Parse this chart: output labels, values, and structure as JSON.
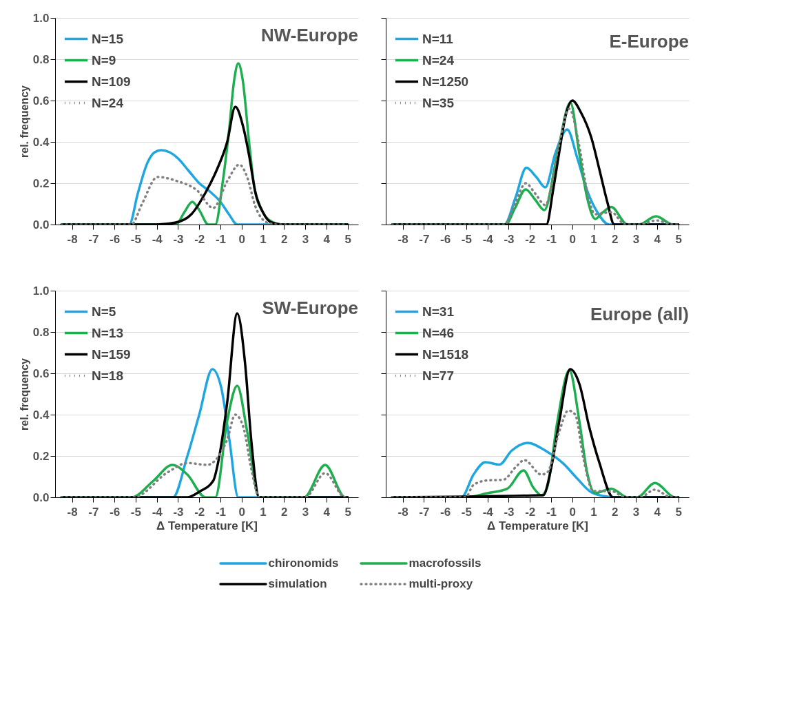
{
  "chart_data": [
    {
      "type": "line",
      "title": "NW-Europe",
      "ylabel": "rel. frequency",
      "xlim": [
        -8.8,
        5.5
      ],
      "ylim": [
        0,
        1
      ],
      "xticks": [
        -8,
        -7,
        -6,
        -5,
        -4,
        -3,
        -2,
        -1,
        0,
        1,
        2,
        3,
        4,
        5
      ],
      "yticks": [
        {
          "value": 0,
          "label": "0.0"
        },
        {
          "value": 0.2,
          "label": "0.2"
        },
        {
          "value": 0.4,
          "label": "0.4"
        },
        {
          "value": 0.6,
          "label": "0.6"
        },
        {
          "value": 0.8,
          "label": "0.8"
        },
        {
          "value": 1,
          "label": "1.0"
        }
      ],
      "grid": "y",
      "legend": "top left",
      "series": [
        {
          "name": "N=15",
          "color": "#1fa6e0",
          "line_style": "solid",
          "x": [
            -8.5,
            -5.3,
            -4.9,
            -4.44,
            -4.1,
            -3.8,
            -3.4,
            -3.0,
            -2.5,
            -2.0,
            -1.5,
            -1.0,
            -0.6,
            -0.2,
            5
          ],
          "values": [
            0,
            0,
            0.15,
            0.3,
            0.35,
            0.36,
            0.35,
            0.32,
            0.26,
            0.2,
            0.16,
            0.11,
            0.05,
            0,
            0
          ]
        },
        {
          "name": "N=9",
          "color": "#1fae4f",
          "line_style": "solid",
          "x": [
            -8.5,
            -3.1,
            -2.7,
            -2.33,
            -2.0,
            -1.57,
            -1.24,
            -0.9,
            -0.6,
            -0.35,
            -0.16,
            0.05,
            0.35,
            0.6,
            1.0,
            1.5,
            1.9,
            5
          ],
          "values": [
            0,
            0,
            0.06,
            0.11,
            0.07,
            0,
            0,
            0.2,
            0.45,
            0.7,
            0.78,
            0.7,
            0.4,
            0.18,
            0.06,
            0.01,
            0,
            0
          ]
        },
        {
          "name": "N=109",
          "color": "#000000",
          "line_style": "solid",
          "x": [
            -8.5,
            -4.0,
            -3.1,
            -2.37,
            -1.7,
            -1.15,
            -0.68,
            -0.3,
            0.08,
            0.36,
            0.64,
            1.0,
            1.4,
            1.9,
            5
          ],
          "values": [
            0,
            0,
            0.01,
            0.05,
            0.155,
            0.27,
            0.4,
            0.57,
            0.47,
            0.33,
            0.16,
            0.06,
            0.01,
            0,
            0
          ]
        },
        {
          "name": "N=24",
          "color": "#808080",
          "line_style": "dotted",
          "x": [
            -8.5,
            -5.2,
            -4.7,
            -3.97,
            -3.03,
            -2.1,
            -1.34,
            -0.68,
            -0.11,
            0.26,
            0.64,
            1.2,
            1.7,
            5
          ],
          "values": [
            0,
            0,
            0.1,
            0.23,
            0.21,
            0.165,
            0.08,
            0.21,
            0.29,
            0.23,
            0.09,
            0.01,
            0,
            0
          ]
        }
      ]
    },
    {
      "type": "line",
      "title": "E-Europe",
      "xlim": [
        -8.8,
        5.5
      ],
      "ylim": [
        0,
        1
      ],
      "tick_labels": "x",
      "xticks": [
        -8,
        -7,
        -6,
        -5,
        -4,
        -3,
        -2,
        -1,
        0,
        1,
        2,
        3,
        4,
        5
      ],
      "yticks": [
        {
          "value": 0,
          "label": null
        },
        {
          "value": 0.2,
          "label": null
        },
        {
          "value": 0.4,
          "label": null
        },
        {
          "value": 0.6,
          "label": null
        },
        {
          "value": 0.8,
          "label": null
        },
        {
          "value": 1,
          "label": null
        }
      ],
      "grid": "y",
      "legend": "top left",
      "series": [
        {
          "name": "N=11",
          "color": "#1fa6e0",
          "line_style": "solid",
          "x": [
            -8.5,
            -3.2,
            -2.68,
            -2.17,
            -1.7,
            -1.27,
            -0.8,
            -0.24,
            0.24,
            0.7,
            1.18,
            1.74,
            5
          ],
          "values": [
            0,
            0,
            0.13,
            0.275,
            0.23,
            0.18,
            0.345,
            0.46,
            0.32,
            0.165,
            0.06,
            0,
            0
          ]
        },
        {
          "name": "N=24",
          "color": "#1fae4f",
          "line_style": "solid",
          "x": [
            -8.5,
            -3.15,
            -2.7,
            -2.2,
            -1.75,
            -1.32,
            -0.7,
            -0.09,
            0.33,
            0.7,
            1.08,
            1.45,
            1.84,
            2.6,
            3.15,
            3.95,
            4.75,
            5
          ],
          "values": [
            0,
            0,
            0.08,
            0.17,
            0.12,
            0.07,
            0.345,
            0.59,
            0.345,
            0.13,
            0.027,
            0.06,
            0.085,
            0,
            0,
            0.04,
            0,
            0
          ]
        },
        {
          "name": "N=1250",
          "color": "#000000",
          "line_style": "solid",
          "x": [
            -8.5,
            -1.22,
            -0.9,
            -0.6,
            -0.33,
            0,
            0.42,
            0.9,
            1.27,
            1.65,
            1.98,
            5
          ],
          "values": [
            0,
            0,
            0.17,
            0.36,
            0.52,
            0.6,
            0.54,
            0.42,
            0.27,
            0.11,
            0,
            0
          ]
        },
        {
          "name": "N=35",
          "color": "#808080",
          "line_style": "dotted",
          "x": [
            -8.5,
            -3.2,
            -2.7,
            -2.2,
            -1.75,
            -1.27,
            -0.7,
            -0.14,
            0.33,
            0.7,
            1.08,
            1.84,
            2.5,
            3.2,
            3.95,
            4.75,
            5
          ],
          "values": [
            0,
            0,
            0.1,
            0.2,
            0.15,
            0.094,
            0.35,
            0.56,
            0.38,
            0.16,
            0.05,
            0.06,
            0,
            0,
            0.02,
            0,
            0
          ]
        }
      ]
    },
    {
      "type": "line",
      "title": "SW-Europe",
      "xlabel": "Δ  Temperature [K]",
      "ylabel": "rel. frequency",
      "xlim": [
        -8.8,
        5.5
      ],
      "ylim": [
        0,
        1
      ],
      "xticks": [
        -8,
        -7,
        -6,
        -5,
        -4,
        -3,
        -2,
        -1,
        0,
        1,
        2,
        3,
        4,
        5
      ],
      "yticks": [
        {
          "value": 0,
          "label": "0.0"
        },
        {
          "value": 0.2,
          "label": "0.2"
        },
        {
          "value": 0.4,
          "label": "0.4"
        },
        {
          "value": 0.6,
          "label": "0.6"
        },
        {
          "value": 0.8,
          "label": "0.8"
        },
        {
          "value": 1,
          "label": "1.0"
        }
      ],
      "grid": "y",
      "legend": "top left",
      "series": [
        {
          "name": "N=5",
          "color": "#1fa6e0",
          "line_style": "solid",
          "x": [
            -8.5,
            -3.24,
            -2.56,
            -2.0,
            -1.38,
            -0.96,
            -0.58,
            -0.16,
            5
          ],
          "values": [
            0,
            0,
            0.2,
            0.4,
            0.62,
            0.53,
            0.28,
            0,
            0
          ]
        },
        {
          "name": "N=13",
          "color": "#1fae4f",
          "line_style": "solid",
          "x": [
            -8.5,
            -5.2,
            -4.16,
            -3.27,
            -2.56,
            -1.71,
            -1.24,
            -0.68,
            -0.21,
            0.26,
            0.83,
            2.95,
            3.94,
            4.88,
            5
          ],
          "values": [
            0,
            0,
            0.08,
            0.157,
            0.11,
            0,
            0,
            0.37,
            0.54,
            0.32,
            0,
            0,
            0.157,
            0,
            0
          ]
        },
        {
          "name": "N=159",
          "color": "#000000",
          "line_style": "solid",
          "x": [
            -8.5,
            -2.56,
            -2.0,
            -1.34,
            -1.05,
            -0.68,
            -0.21,
            0.17,
            0.45,
            0.83,
            5
          ],
          "values": [
            0,
            0,
            0.027,
            0.08,
            0.2,
            0.46,
            0.89,
            0.64,
            0.28,
            0,
            0
          ]
        },
        {
          "name": "N=18",
          "color": "#808080",
          "line_style": "dotted",
          "x": [
            -8.5,
            -5.1,
            -3.5,
            -2.56,
            -1.62,
            -1.15,
            -0.68,
            -0.3,
            0.08,
            0.45,
            0.83,
            3.0,
            3.94,
            4.88,
            5
          ],
          "values": [
            0,
            0,
            0.12,
            0.166,
            0.157,
            0.19,
            0.28,
            0.4,
            0.34,
            0.14,
            0,
            0,
            0.117,
            0,
            0
          ]
        }
      ]
    },
    {
      "type": "line",
      "title": "Europe (all)",
      "xlabel": "Δ  Temperature [K]",
      "xlim": [
        -8.8,
        5.5
      ],
      "ylim": [
        0,
        1
      ],
      "tick_labels": "x",
      "xticks": [
        -8,
        -7,
        -6,
        -5,
        -4,
        -3,
        -2,
        -1,
        0,
        1,
        2,
        3,
        4,
        5
      ],
      "yticks": [
        {
          "value": 0,
          "label": null
        },
        {
          "value": 0.2,
          "label": null
        },
        {
          "value": 0.4,
          "label": null
        },
        {
          "value": 0.6,
          "label": null
        },
        {
          "value": 0.8,
          "label": null
        },
        {
          "value": 1,
          "label": null
        }
      ],
      "grid": "y",
      "legend": "top left",
      "annotations": [
        "chironomids",
        "macrofossils",
        "simulation",
        "multi-proxy"
      ],
      "series": [
        {
          "name": "N=31",
          "color": "#1fa6e0",
          "line_style": "solid",
          "x": [
            -8.5,
            -5.23,
            -4.66,
            -4.1,
            -3.44,
            -2.87,
            -2.12,
            -1.18,
            -0.42,
            0.24,
            0.9,
            1.65,
            2.1,
            5
          ],
          "values": [
            0,
            0,
            0.11,
            0.17,
            0.158,
            0.225,
            0.263,
            0.22,
            0.163,
            0.09,
            0.024,
            0.003,
            0,
            0
          ]
        },
        {
          "name": "N=46",
          "color": "#1fae4f",
          "line_style": "solid",
          "x": [
            -8.5,
            -5.1,
            -4.0,
            -3.06,
            -2.3,
            -1.84,
            -1.46,
            -1.18,
            -0.7,
            -0.14,
            0.33,
            0.7,
            1.08,
            1.84,
            2.6,
            3.06,
            3.9,
            4.85,
            5
          ],
          "values": [
            0,
            0,
            0.02,
            0.042,
            0.13,
            0.047,
            0.01,
            0.05,
            0.37,
            0.615,
            0.37,
            0.12,
            0.02,
            0.042,
            0,
            0,
            0.069,
            0,
            0
          ]
        },
        {
          "name": "N=1518",
          "color": "#000000",
          "line_style": "solid",
          "x": [
            -8.5,
            -1.37,
            -0.99,
            -0.61,
            -0.1,
            0.33,
            0.8,
            1.27,
            1.93,
            5
          ],
          "values": [
            0,
            0.01,
            0.145,
            0.37,
            0.62,
            0.55,
            0.34,
            0.17,
            0,
            0
          ]
        },
        {
          "name": "N=77",
          "color": "#808080",
          "line_style": "dotted",
          "x": [
            -8.5,
            -5.04,
            -4.66,
            -4.0,
            -3.25,
            -2.68,
            -2.26,
            -1.46,
            -1.18,
            -0.61,
            -0.19,
            0.14,
            0.52,
            0.99,
            1.84,
            2.5,
            3.2,
            3.9,
            4.66,
            5
          ],
          "values": [
            0,
            0,
            0.06,
            0.082,
            0.085,
            0.145,
            0.18,
            0.11,
            0.12,
            0.32,
            0.42,
            0.4,
            0.19,
            0.03,
            0.03,
            0,
            0,
            0.037,
            0,
            0
          ]
        }
      ]
    }
  ]
}
